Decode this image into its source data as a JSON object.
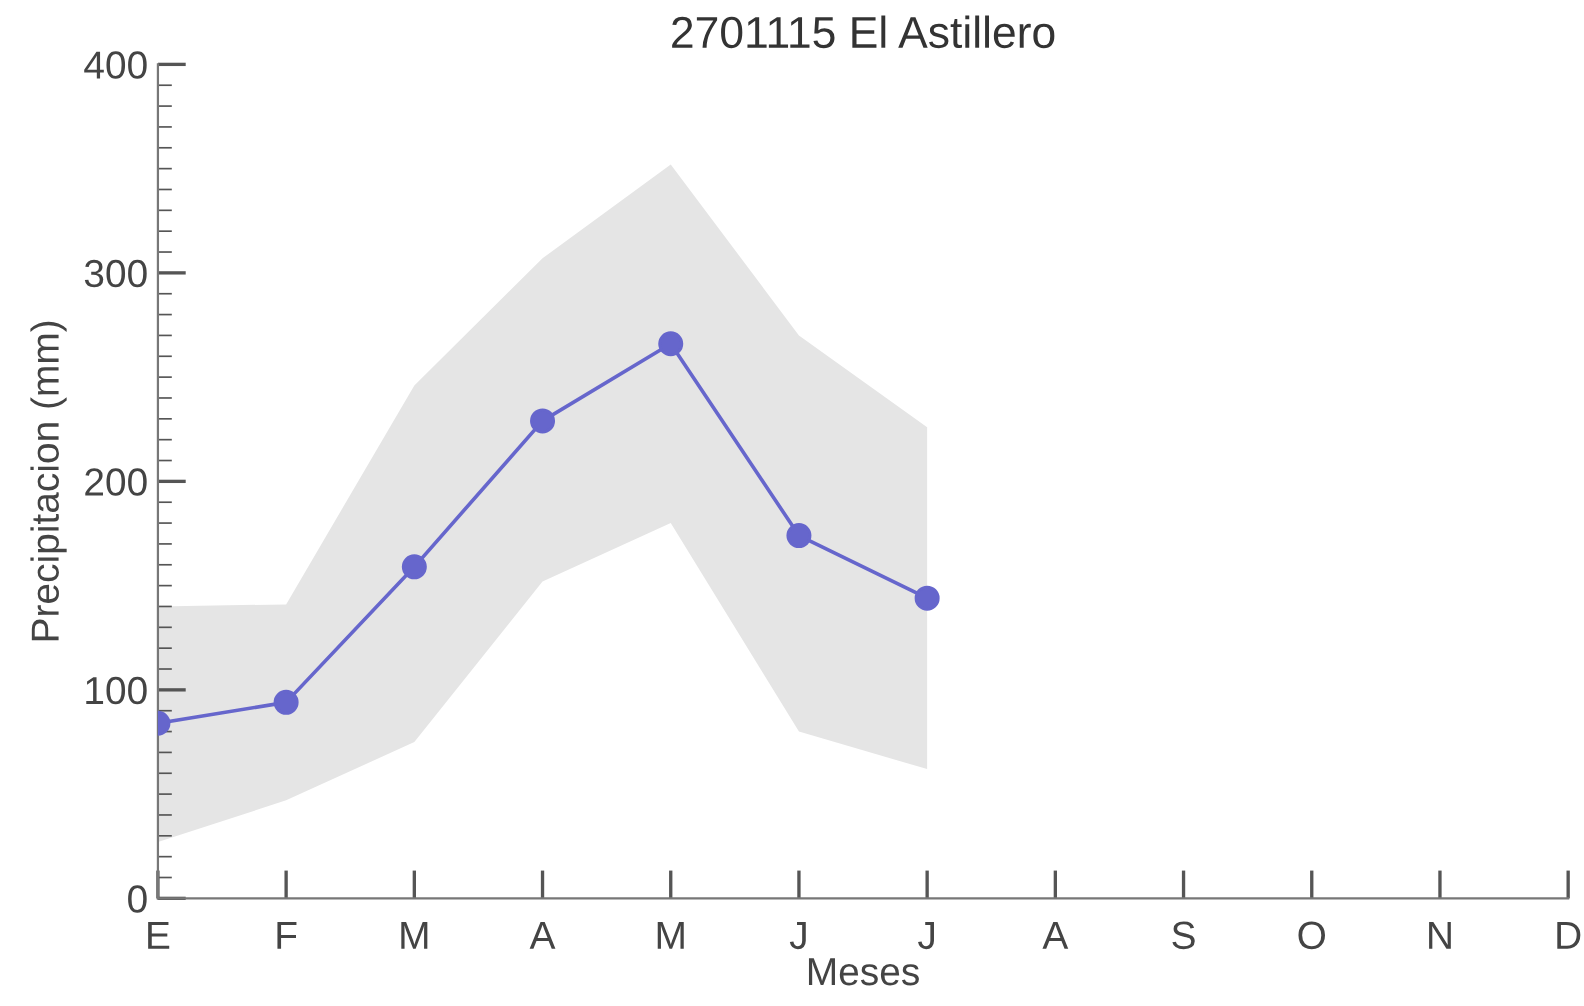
{
  "chart_data": {
    "type": "line",
    "title": "2701115 El Astillero",
    "xlabel": "Meses",
    "ylabel": "Precipitacion (mm)",
    "categories": [
      "E",
      "F",
      "M",
      "A",
      "M",
      "J",
      "J",
      "A",
      "S",
      "O",
      "N",
      "D"
    ],
    "series": [
      {
        "color": "#6666cc",
        "values": [
          84,
          94,
          159,
          229,
          266,
          174,
          144,
          null,
          null,
          null,
          null,
          null
        ],
        "lower": [
          27,
          47,
          75,
          152,
          180,
          80,
          62,
          null,
          null,
          null,
          null,
          null
        ],
        "upper": [
          140,
          141,
          246,
          307,
          352,
          270,
          226,
          null,
          null,
          null,
          null,
          null
        ]
      }
    ],
    "ylim": [
      0,
      400
    ],
    "yticks": [
      0,
      100,
      200,
      300,
      400
    ],
    "marker": "circle",
    "line_style": "solid",
    "grid": false
  }
}
